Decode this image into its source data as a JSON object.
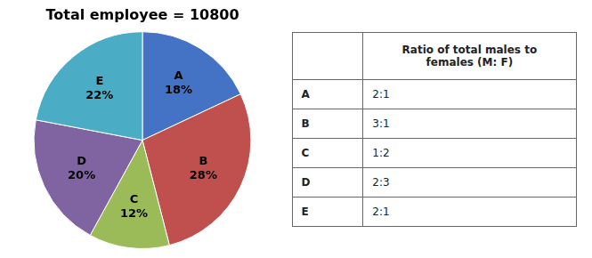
{
  "chart_data": {
    "type": "pie",
    "title": "Total employee = 10800",
    "categories": [
      "A",
      "B",
      "C",
      "D",
      "E"
    ],
    "values": [
      18,
      28,
      12,
      20,
      22
    ],
    "value_labels": [
      "18%",
      "28%",
      "12%",
      "20%",
      "22%"
    ],
    "data_labels": true,
    "colors": [
      "#4472C4",
      "#C0504D",
      "#9BBB59",
      "#8064A2",
      "#4BACC6"
    ],
    "table": {
      "header": "Ratio of total males to\nfemales (M: F)",
      "rows": [
        [
          "A",
          "2:1"
        ],
        [
          "B",
          "3:1"
        ],
        [
          "C",
          "1:2"
        ],
        [
          "D",
          "2:3"
        ],
        [
          "E",
          "2:1"
        ]
      ]
    }
  }
}
